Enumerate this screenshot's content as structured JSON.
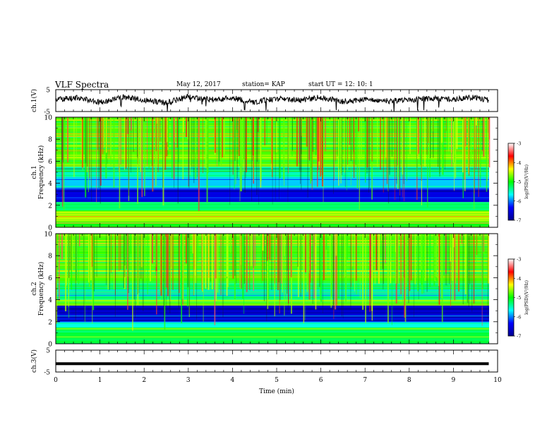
{
  "header": {
    "title": "VLF Spectra",
    "date": "May 12, 2017",
    "station": "station= KAP",
    "start": "start  UT =   12: 10: 1"
  },
  "chart_data": [
    {
      "type": "line",
      "panel": "ch1-waveform",
      "ylabel": "ch.1(V)",
      "ylim": [
        -5,
        5
      ],
      "yticks": [
        "5",
        "-5"
      ],
      "xlim": [
        0,
        10
      ],
      "description_series": "noisy waveform, amplitude roughly -3..3 V",
      "x": [
        0,
        0.5,
        1,
        1.5,
        2,
        2.5,
        3,
        3.5,
        4,
        4.5,
        5,
        5.5,
        6,
        6.5,
        7,
        7.5,
        8,
        8.5,
        9,
        9.5,
        9.8
      ],
      "values": [
        0.5,
        1.2,
        -0.8,
        1.6,
        0.3,
        -1.1,
        1.8,
        0.4,
        1.1,
        -0.6,
        0.9,
        0.2,
        1.5,
        -0.4,
        0.7,
        -0.2,
        0.3,
        1.0,
        0.6,
        1.4,
        0.2
      ]
    },
    {
      "type": "heatmap",
      "panel": "ch1-spectrogram",
      "ylabel": "ch.1\nFrequency (kHz)",
      "ylim": [
        0,
        10
      ],
      "yticks": [
        "0",
        "2",
        "4",
        "6",
        "8",
        "10"
      ],
      "xlim": [
        0,
        10
      ],
      "colorbar": {
        "label": "log(PSD)(V²/Hz)",
        "range": [
          -7,
          -3
        ],
        "ticks": [
          "-3",
          "-4",
          "-5",
          "-6",
          "-7"
        ],
        "colors": [
          "#00008f",
          "#0000ff",
          "#00ffff",
          "#00ff00",
          "#ffff00",
          "#ff0000",
          "#ffffff"
        ]
      },
      "band_levels_log_psd": [
        {
          "from": 0,
          "to": 0.4,
          "value": -5.0
        },
        {
          "from": 0.4,
          "to": 0.7,
          "value": -4.8
        },
        {
          "from": 0.7,
          "to": 1.6,
          "value": -4.5
        },
        {
          "from": 1.6,
          "to": 2.3,
          "value": -5.3
        },
        {
          "from": 2.3,
          "to": 3.6,
          "value": -6.5
        },
        {
          "from": 3.6,
          "to": 4.5,
          "value": -5.8
        },
        {
          "from": 4.5,
          "to": 5.5,
          "value": -5.5
        },
        {
          "from": 5.5,
          "to": 10,
          "value": -4.8
        }
      ]
    },
    {
      "type": "heatmap",
      "panel": "ch2-spectrogram",
      "ylabel": "ch.2\nFrequency (kHz)",
      "ylim": [
        0,
        10
      ],
      "yticks": [
        "0",
        "2",
        "4",
        "6",
        "8",
        "10"
      ],
      "xlim": [
        0,
        10
      ],
      "colorbar": {
        "label": "log(PSD)(V²/Hz)",
        "range": [
          -7,
          -3
        ],
        "ticks": [
          "-3",
          "-4",
          "-5",
          "-6",
          "-7"
        ],
        "colors": [
          "#00008f",
          "#0000ff",
          "#00ffff",
          "#00ff00",
          "#ffff00",
          "#ff0000",
          "#ffffff"
        ]
      },
      "band_levels_log_psd": [
        {
          "from": 0,
          "to": 1.5,
          "value": -5.2
        },
        {
          "from": 1.5,
          "to": 2.0,
          "value": -5.6
        },
        {
          "from": 2.0,
          "to": 3.5,
          "value": -6.6
        },
        {
          "from": 3.5,
          "to": 4.0,
          "value": -4.6
        },
        {
          "from": 4.0,
          "to": 5.5,
          "value": -5.4
        },
        {
          "from": 5.5,
          "to": 10,
          "value": -4.8
        }
      ]
    },
    {
      "type": "line",
      "panel": "ch3-waveform",
      "ylabel": "ch.3(V)",
      "ylim": [
        -5,
        5
      ],
      "yticks": [
        "5",
        "-5"
      ],
      "xlim": [
        0,
        10
      ],
      "xlabel": "Time (min)",
      "xticks": [
        "0",
        "1",
        "2",
        "3",
        "4",
        "5",
        "6",
        "7",
        "8",
        "9",
        "10"
      ],
      "x": [
        0,
        9.8
      ],
      "values": [
        -1.2,
        -1.2
      ]
    }
  ]
}
